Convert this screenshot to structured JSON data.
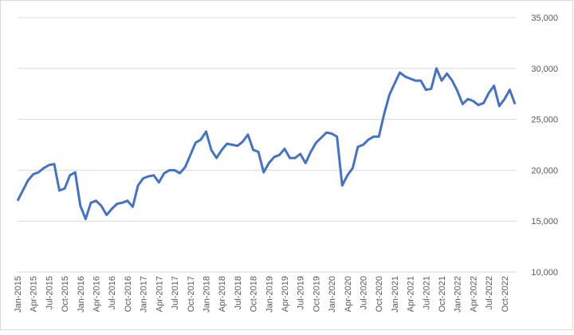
{
  "chart_data": {
    "type": "line",
    "x": [
      "Jan-2015",
      "Feb-2015",
      "Mar-2015",
      "Apr-2015",
      "May-2015",
      "Jun-2015",
      "Jul-2015",
      "Aug-2015",
      "Sep-2015",
      "Oct-2015",
      "Nov-2015",
      "Dec-2015",
      "Jan-2016",
      "Feb-2016",
      "Mar-2016",
      "Apr-2016",
      "May-2016",
      "Jun-2016",
      "Jul-2016",
      "Aug-2016",
      "Sep-2016",
      "Oct-2016",
      "Nov-2016",
      "Dec-2016",
      "Jan-2017",
      "Feb-2017",
      "Mar-2017",
      "Apr-2017",
      "May-2017",
      "Jun-2017",
      "Jul-2017",
      "Aug-2017",
      "Sep-2017",
      "Oct-2017",
      "Nov-2017",
      "Dec-2017",
      "Jan-2018",
      "Feb-2018",
      "Mar-2018",
      "Apr-2018",
      "May-2018",
      "Jun-2018",
      "Jul-2018",
      "Aug-2018",
      "Sep-2018",
      "Oct-2018",
      "Nov-2018",
      "Dec-2018",
      "Jan-2019",
      "Feb-2019",
      "Mar-2019",
      "Apr-2019",
      "May-2019",
      "Jun-2019",
      "Jul-2019",
      "Aug-2019",
      "Sep-2019",
      "Oct-2019",
      "Nov-2019",
      "Dec-2019",
      "Jan-2020",
      "Feb-2020",
      "Mar-2020",
      "Apr-2020",
      "May-2020",
      "Jun-2020",
      "Jul-2020",
      "Aug-2020",
      "Sep-2020",
      "Oct-2020",
      "Nov-2020",
      "Dec-2020",
      "Jan-2021",
      "Feb-2021",
      "Mar-2021",
      "Apr-2021",
      "May-2021",
      "Jun-2021",
      "Jul-2021",
      "Aug-2021",
      "Sep-2021",
      "Oct-2021",
      "Nov-2021",
      "Dec-2021",
      "Jan-2022",
      "Feb-2022",
      "Mar-2022",
      "Apr-2022",
      "May-2022",
      "Jun-2022",
      "Jul-2022",
      "Aug-2022",
      "Sep-2022",
      "Oct-2022",
      "Nov-2022",
      "Dec-2022"
    ],
    "series": [
      {
        "color": "#4472c4",
        "values": [
          17000,
          18000,
          19000,
          19600,
          19800,
          20200,
          20500,
          20600,
          18000,
          18200,
          19500,
          19800,
          16500,
          15200,
          16800,
          17000,
          16500,
          15600,
          16200,
          16700,
          16800,
          17000,
          16400,
          18500,
          19200,
          19400,
          19500,
          18800,
          19700,
          20000,
          20000,
          19700,
          20300,
          21500,
          22700,
          23000,
          23800,
          22000,
          21200,
          22000,
          22600,
          22500,
          22400,
          22800,
          23500,
          22000,
          21800,
          19800,
          20700,
          21300,
          21500,
          22100,
          21200,
          21200,
          21600,
          20700,
          21800,
          22700,
          23200,
          23700,
          23600,
          23300,
          18500,
          19500,
          20200,
          22300,
          22500,
          23000,
          23300,
          23300,
          25500,
          27400,
          28500,
          29600,
          29200,
          29000,
          28800,
          28800,
          27900,
          28000,
          30000,
          28800,
          29500,
          28800,
          27800,
          26500,
          27000,
          26800,
          26400,
          26600,
          27600,
          28300,
          26300,
          27000,
          27900,
          26500
        ]
      }
    ],
    "ylim": [
      10000,
      35000
    ],
    "yticks": [
      {
        "value": 10000,
        "label": "10,000"
      },
      {
        "value": 15000,
        "label": "15,000"
      },
      {
        "value": 20000,
        "label": "20,000"
      },
      {
        "value": 25000,
        "label": "25,000"
      },
      {
        "value": 30000,
        "label": "30,000"
      },
      {
        "value": 35000,
        "label": "35,000"
      }
    ],
    "grid": true
  }
}
